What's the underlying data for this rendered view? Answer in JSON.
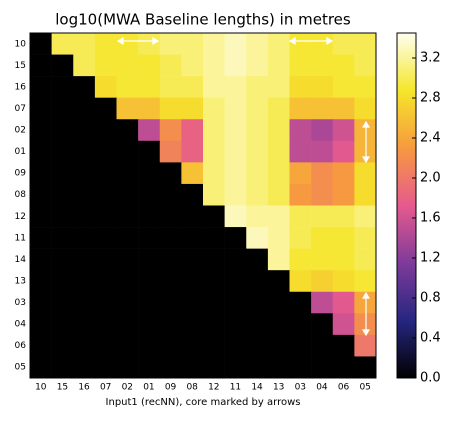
{
  "chart_data": {
    "type": "heatmap",
    "title": "log10(MWA Baseline lengths) in metres",
    "xlabel": "Input1 (recNN), core marked by arrows",
    "categories": [
      "10",
      "15",
      "16",
      "07",
      "02",
      "01",
      "09",
      "08",
      "12",
      "11",
      "14",
      "13",
      "03",
      "04",
      "06",
      "05"
    ],
    "values": [
      [
        0,
        3.0,
        3.0,
        2.9,
        2.9,
        3.0,
        3.1,
        3.1,
        3.2,
        3.3,
        3.2,
        3.1,
        2.9,
        2.9,
        3.0,
        3.0
      ],
      [
        0,
        0,
        3.0,
        2.9,
        2.9,
        2.9,
        3.0,
        3.1,
        3.2,
        3.3,
        3.2,
        3.1,
        2.9,
        2.9,
        2.9,
        3.0
      ],
      [
        0,
        0,
        0,
        2.8,
        2.9,
        2.9,
        3.0,
        3.0,
        3.2,
        3.2,
        3.1,
        3.1,
        2.8,
        2.8,
        2.9,
        2.9
      ],
      [
        0,
        0,
        0,
        0,
        2.6,
        2.6,
        2.8,
        2.8,
        3.1,
        3.2,
        3.1,
        3.0,
        2.6,
        2.6,
        2.6,
        2.8
      ],
      [
        0,
        0,
        0,
        0,
        0,
        1.5,
        2.2,
        1.8,
        3.1,
        3.2,
        3.1,
        3.0,
        1.5,
        1.4,
        1.6,
        2.5
      ],
      [
        0,
        0,
        0,
        0,
        0,
        0,
        2.1,
        1.8,
        3.1,
        3.2,
        3.1,
        3.0,
        1.5,
        1.5,
        1.7,
        2.5
      ],
      [
        0,
        0,
        0,
        0,
        0,
        0,
        0,
        2.6,
        3.1,
        3.2,
        3.1,
        3.0,
        2.4,
        2.2,
        2.3,
        2.8
      ],
      [
        0,
        0,
        0,
        0,
        0,
        0,
        0,
        0,
        3.1,
        3.2,
        3.1,
        3.0,
        2.3,
        2.2,
        2.3,
        2.8
      ],
      [
        0,
        0,
        0,
        0,
        0,
        0,
        0,
        0,
        0,
        3.3,
        3.2,
        3.2,
        3.0,
        3.0,
        3.0,
        3.1
      ],
      [
        0,
        0,
        0,
        0,
        0,
        0,
        0,
        0,
        0,
        0,
        3.3,
        3.2,
        3.0,
        2.9,
        2.9,
        3.0
      ],
      [
        0,
        0,
        0,
        0,
        0,
        0,
        0,
        0,
        0,
        0,
        0,
        3.2,
        2.9,
        2.9,
        2.9,
        3.0
      ],
      [
        0,
        0,
        0,
        0,
        0,
        0,
        0,
        0,
        0,
        0,
        0,
        0,
        2.8,
        2.7,
        2.8,
        2.9
      ],
      [
        0,
        0,
        0,
        0,
        0,
        0,
        0,
        0,
        0,
        0,
        0,
        0,
        0,
        1.5,
        1.7,
        2.4
      ],
      [
        0,
        0,
        0,
        0,
        0,
        0,
        0,
        0,
        0,
        0,
        0,
        0,
        0,
        0,
        1.6,
        2.2
      ],
      [
        0,
        0,
        0,
        0,
        0,
        0,
        0,
        0,
        0,
        0,
        0,
        0,
        0,
        0,
        0,
        2.0
      ],
      [
        0,
        0,
        0,
        0,
        0,
        0,
        0,
        0,
        0,
        0,
        0,
        0,
        0,
        0,
        0,
        0
      ]
    ],
    "zlim": [
      0,
      3.45
    ],
    "zticks": [
      {
        "value": 0,
        "label": "0.0"
      },
      {
        "value": 0.4,
        "label": "0.4"
      },
      {
        "value": 0.8,
        "label": "0.8"
      },
      {
        "value": 1.2,
        "label": "1.2"
      },
      {
        "value": 1.6,
        "label": "1.6"
      },
      {
        "value": 2.0,
        "label": "2.0"
      },
      {
        "value": 2.4,
        "label": "2.4"
      },
      {
        "value": 2.8,
        "label": "2.8"
      },
      {
        "value": 3.2,
        "label": "3.2"
      }
    ],
    "colormap": [
      "#000000",
      "#262680",
      "#7e3b9a",
      "#e65a8e",
      "#f79940",
      "#f5e62a",
      "#fffff0"
    ]
  }
}
